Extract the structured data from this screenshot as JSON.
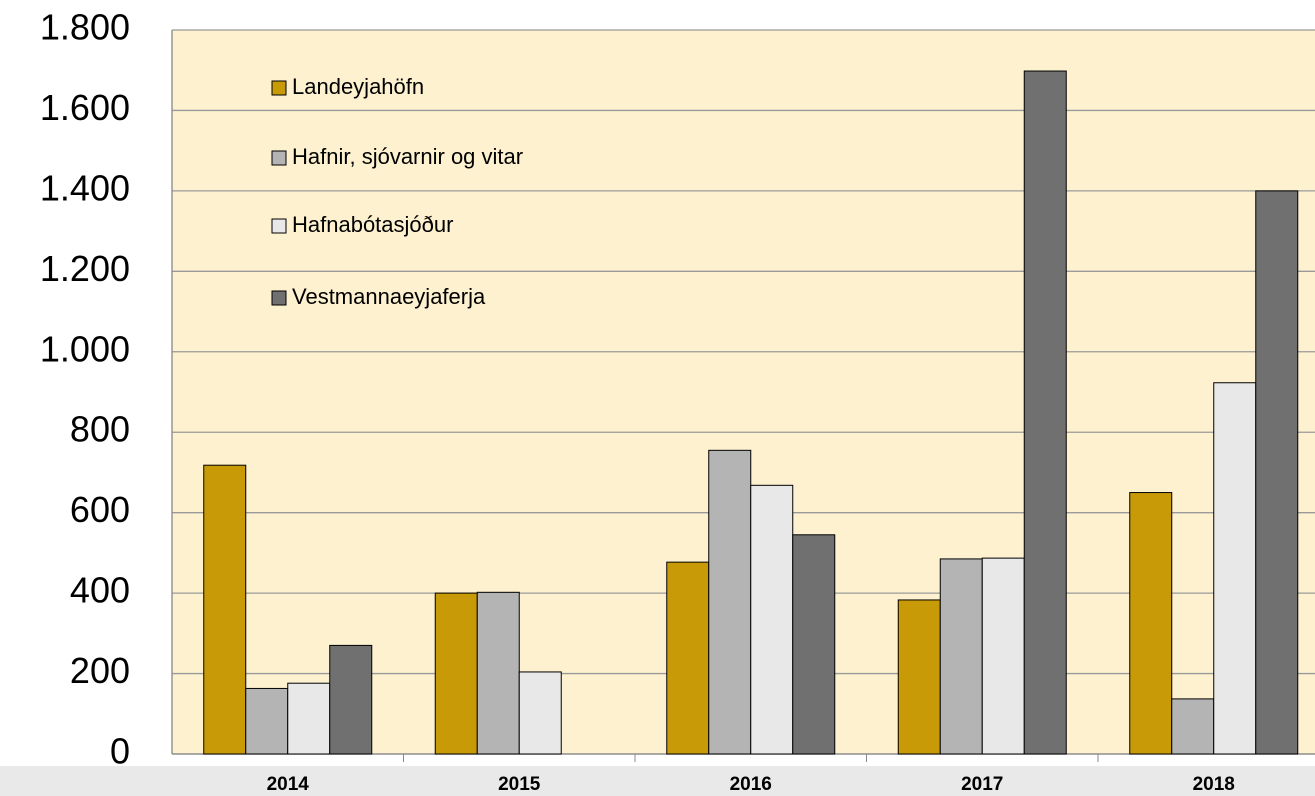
{
  "chart_data": {
    "type": "bar",
    "categories": [
      "2014",
      "2015",
      "2016",
      "2017",
      "2018"
    ],
    "series": [
      {
        "name": "Landeyjahöfn",
        "color": "#c99a08",
        "values": [
          718,
          400,
          477,
          383,
          650
        ]
      },
      {
        "name": "Hafnir, sjóvarnir og vitar",
        "color": "#b4b4b4",
        "values": [
          163,
          402,
          755,
          485,
          137
        ]
      },
      {
        "name": "Hafnabótasjóður",
        "color": "#e8e8e8",
        "values": [
          176,
          204,
          668,
          487,
          923
        ]
      },
      {
        "name": "Vestmannaeyjaferja",
        "color": "#707070",
        "values": [
          270,
          null,
          545,
          1698,
          1400
        ]
      }
    ],
    "ylim": [
      0,
      1800
    ],
    "yticks": [
      0,
      200,
      400,
      600,
      800,
      {
        "value": 1000,
        "label": "1.000"
      },
      {
        "value": 1200,
        "label": "1.200"
      },
      {
        "value": 1400,
        "label": "1.400"
      },
      {
        "value": 1600,
        "label": "1.600"
      },
      {
        "value": 1800,
        "label": "1.800"
      }
    ],
    "grid": true,
    "legend": "upper left"
  }
}
